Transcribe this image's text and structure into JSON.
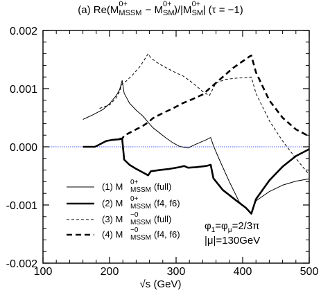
{
  "chart_data": {
    "type": "line",
    "title": "(a) Re(M^{0+}_{MSSM} − M^{0+}_{SM})/|M^{0+}_{SM}|  (τ = −1)",
    "title_parts": {
      "prefix": "(a) Re(M",
      "sup1": "0+",
      "sub1": "MSSM",
      "mid": " − M",
      "sup2": "0+",
      "sub2": "SM",
      "mid2": ")/|M",
      "sup3": "0+",
      "sub3": "SM",
      "suffix": "|  (τ = −1)"
    },
    "xlabel": "√s (GeV)",
    "ylabel": "",
    "xlim": [
      100,
      500
    ],
    "ylim": [
      -0.002,
      0.002
    ],
    "x_ticks": [
      100,
      200,
      300,
      400,
      500
    ],
    "x_tick_labels": [
      "100",
      "200",
      "300",
      "400",
      "500"
    ],
    "y_ticks": [
      -0.002,
      -0.001,
      0.0,
      0.001,
      0.002
    ],
    "y_tick_labels": [
      "-0.002",
      "-0.001",
      "0.000",
      "0.001",
      "0.002"
    ],
    "grid": false,
    "zero_line_color": "#4455ee",
    "legend_position": "bottom-left",
    "series": [
      {
        "name": "(1) M^{0+}_{MSSM}(full)",
        "legend_main": "(1) M",
        "legend_sup": "0+",
        "legend_sub": "MSSM",
        "legend_tail": "(full)",
        "style": "thin-solid",
        "x": [
          160,
          175,
          190,
          200,
          210,
          215,
          219,
          222,
          230,
          240,
          250,
          258,
          265,
          275,
          285,
          295,
          305,
          312,
          318,
          325,
          335,
          345,
          352,
          356,
          365,
          380,
          395,
          410,
          413,
          420,
          440,
          460,
          480,
          500
        ],
        "y": [
          0.00047,
          0.00055,
          0.00064,
          0.00074,
          0.00088,
          0.00098,
          0.00114,
          0.00092,
          0.00075,
          0.00063,
          0.00053,
          0.00042,
          0.00033,
          0.00024,
          0.00015,
          7e-05,
          1e-05,
          -1e-05,
          -2e-05,
          2e-05,
          7e-05,
          0.00012,
          0.00016,
          2e-05,
          -0.00022,
          -0.0006,
          -0.00095,
          -0.00111,
          -0.00113,
          -0.00093,
          -0.00077,
          -0.00066,
          -0.00059,
          -0.00055
        ]
      },
      {
        "name": "(2) M^{0+}_{MSSM}(f4, f6)",
        "legend_main": "(2) M",
        "legend_sup": "0+",
        "legend_sub": "MSSM",
        "legend_tail": "(f4, f6)",
        "style": "thick-solid",
        "x": [
          160,
          178,
          185,
          195,
          205,
          215,
          219,
          222,
          230,
          240,
          250,
          258,
          262,
          275,
          290,
          305,
          312,
          318,
          330,
          345,
          352,
          356,
          370,
          390,
          405,
          413,
          420,
          440,
          460,
          480,
          500
        ],
        "y": [
          0.0,
          0.0,
          4e-05,
          0.0001,
          0.00012,
          0.00013,
          0.00014,
          -0.00022,
          -0.00031,
          -0.00038,
          -0.00044,
          -0.00049,
          -0.00042,
          -0.0004,
          -0.00038,
          -0.00035,
          -0.00033,
          -0.00036,
          -0.00035,
          -0.00033,
          -0.00031,
          -0.00054,
          -0.00074,
          -0.00092,
          -0.00105,
          -0.00115,
          -0.0009,
          -0.00058,
          -0.00034,
          -0.00016,
          -4e-05
        ]
      },
      {
        "name": "(3) M^{-0}_{MSSM}(full)",
        "legend_main": "(3) M",
        "legend_sup": "−0",
        "legend_sub": "MSSM",
        "legend_tail": "(full)",
        "style": "thin-dashed",
        "x": [
          185,
          200,
          210,
          215,
          219,
          225,
          235,
          245,
          252,
          258,
          262,
          270,
          280,
          290,
          300,
          310,
          320,
          330,
          340,
          350,
          360,
          375,
          390,
          405,
          413,
          420,
          440,
          460,
          480,
          500
        ],
        "y": [
          0.00066,
          0.00072,
          0.00084,
          0.00095,
          0.00108,
          0.00113,
          0.00124,
          0.00137,
          0.00149,
          0.0016,
          0.00153,
          0.00146,
          0.00139,
          0.00133,
          0.00127,
          0.00122,
          0.00114,
          0.00105,
          0.00095,
          0.00088,
          0.0011,
          0.00116,
          0.00118,
          0.00119,
          0.0012,
          0.00092,
          0.00045,
          0.0001,
          -0.0002,
          -0.00048
        ]
      },
      {
        "name": "(4) M^{-0}_{MSSM}(f4, f6)",
        "legend_main": "(4) M",
        "legend_sup": "−0",
        "legend_sub": "MSSM",
        "legend_tail": "(f4, f6)",
        "style": "thick-dashed",
        "x": [
          215,
          219,
          222,
          230,
          240,
          250,
          258,
          265,
          280,
          295,
          310,
          325,
          340,
          355,
          370,
          385,
          400,
          410,
          413,
          420,
          440,
          460,
          480,
          500
        ],
        "y": [
          0.00014,
          0.00014,
          0.00019,
          0.00024,
          0.0003,
          0.00036,
          0.00042,
          0.00049,
          0.00058,
          0.00066,
          0.00075,
          0.00082,
          0.0009,
          0.00105,
          0.0012,
          0.00135,
          0.00147,
          0.00155,
          0.00157,
          0.00128,
          0.0008,
          0.0005,
          0.0003,
          0.00018
        ]
      }
    ],
    "annotations": [
      {
        "text": "φ1=φμ=2/3π",
        "parts": [
          "φ",
          "1",
          "=φ",
          "μ",
          "=2/3π"
        ]
      },
      {
        "text": "|μ|=130GeV"
      }
    ]
  }
}
